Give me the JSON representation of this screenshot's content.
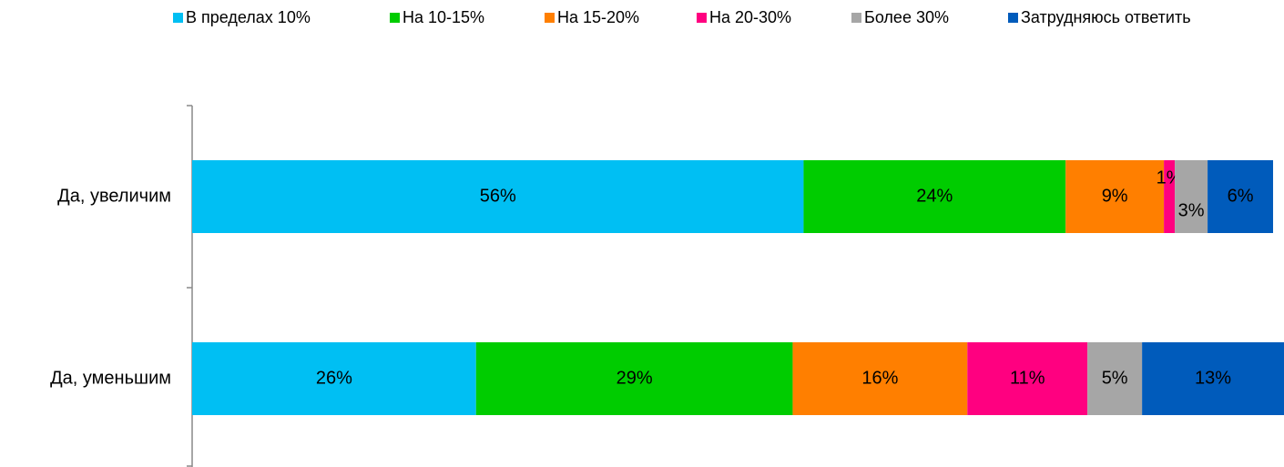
{
  "chart_data": {
    "type": "stacked_barh",
    "categories": [
      "Да, увеличим",
      "Да, уменьшим"
    ],
    "series": [
      {
        "name": "В пределах 10%",
        "color": "#00bff3",
        "values": [
          56,
          26
        ],
        "value_labels": [
          "56%",
          "26%"
        ]
      },
      {
        "name": "На 10-15%",
        "color": "#00cc00",
        "values": [
          24,
          29
        ],
        "value_labels": [
          "24%",
          "29%"
        ]
      },
      {
        "name": "На 15-20%",
        "color": "#ff7f00",
        "values": [
          9,
          16
        ],
        "value_labels": [
          "9%",
          "16%"
        ]
      },
      {
        "name": "На 20-30%",
        "color": "#ff0080",
        "values": [
          1,
          11
        ],
        "value_labels": [
          "1%",
          "11%"
        ]
      },
      {
        "name": "Более 30%",
        "color": "#a6a6a6",
        "values": [
          3,
          5
        ],
        "value_labels": [
          "3%",
          "5%"
        ]
      },
      {
        "name": "Затрудняюсь ответить",
        "color": "#005bbb",
        "values": [
          6,
          13
        ],
        "value_labels": [
          "6%",
          "13%"
        ]
      }
    ],
    "xlim": [
      0,
      100
    ],
    "legend": "top"
  }
}
